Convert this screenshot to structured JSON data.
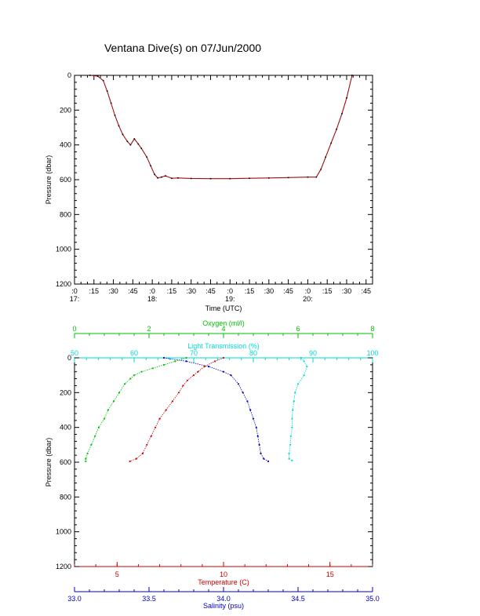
{
  "chart_data": [
    {
      "type": "line",
      "title": "Ventana Dive(s) on 07/Jun/2000",
      "xlabel": "Time (UTC)",
      "ylabel": "Pressure (dbar)",
      "ylim": [
        1200,
        0
      ],
      "yticks": [
        "0",
        "200",
        "400",
        "600",
        "800",
        "1000",
        "1200"
      ],
      "xticks_minute": [
        ":0",
        ":15",
        ":30",
        ":45",
        ":0",
        ":15",
        ":30",
        ":45",
        ":0",
        ":15",
        ":30",
        ":45",
        ":0",
        ":15",
        ":30",
        ":45"
      ],
      "xticks_hour": [
        "17:",
        "18:",
        "19:",
        "20:"
      ],
      "x_range_hours": [
        17.0,
        20.8333
      ],
      "color": "#a01010",
      "series": [
        {
          "x_hours": [
            17.2,
            17.3,
            17.37,
            17.42,
            17.47,
            17.52,
            17.57,
            17.62,
            17.68,
            17.72,
            17.77,
            17.82,
            17.86,
            17.93,
            17.98,
            18.03,
            18.07,
            18.12,
            18.17,
            18.25,
            18.33,
            18.5,
            18.75,
            19.0,
            19.25,
            19.5,
            19.75,
            20.0,
            20.11,
            20.17,
            20.23,
            20.3,
            20.37,
            20.44,
            20.5,
            20.57
          ],
          "y": [
            0,
            5,
            30,
            90,
            160,
            230,
            290,
            340,
            380,
            400,
            365,
            395,
            420,
            470,
            520,
            570,
            590,
            585,
            578,
            592,
            590,
            593,
            594,
            594,
            592,
            590,
            588,
            585,
            585,
            540,
            470,
            390,
            310,
            220,
            130,
            0
          ]
        }
      ]
    },
    {
      "type": "scatter",
      "ylabel": "Pressure (dbar)",
      "ylim": [
        1200,
        0
      ],
      "yticks": [
        "0",
        "200",
        "400",
        "600",
        "800",
        "1000",
        "1200"
      ],
      "axes": {
        "oxygen": {
          "label": "Oxygen (ml/l)",
          "range": [
            0,
            8
          ],
          "ticks": [
            "0",
            "2",
            "4",
            "6",
            "8"
          ],
          "color": "#00c000"
        },
        "light": {
          "label": "Light Transmission (%)",
          "range": [
            50,
            100
          ],
          "ticks": [
            "50",
            "60",
            "70",
            "80",
            "90",
            "100"
          ],
          "color": "#00d8d8"
        },
        "temperature": {
          "label": "Temperature (C)",
          "range": [
            3,
            17
          ],
          "ticks": [
            "5",
            "10",
            "15"
          ],
          "color": "#cc0000"
        },
        "salinity": {
          "label": "Salinity (psu)",
          "range": [
            33.0,
            35.0
          ],
          "ticks": [
            "33.0",
            "33.5",
            "34.0",
            "34.5",
            "35.0"
          ],
          "color": "#0000c0"
        }
      },
      "series": [
        {
          "axis": "oxygen",
          "pressure": [
            0,
            20,
            40,
            60,
            80,
            100,
            120,
            150,
            200,
            250,
            300,
            350,
            400,
            450,
            500,
            550,
            580,
            595
          ],
          "values": [
            3.0,
            2.7,
            2.4,
            2.1,
            1.8,
            1.6,
            1.5,
            1.35,
            1.2,
            1.05,
            0.9,
            0.8,
            0.65,
            0.55,
            0.45,
            0.35,
            0.3,
            0.3
          ]
        },
        {
          "axis": "light",
          "pressure": [
            0,
            20,
            50,
            100,
            150,
            200,
            250,
            300,
            350,
            400,
            450,
            500,
            550,
            580,
            590
          ],
          "values": [
            88.0,
            88.5,
            89.0,
            88.5,
            87.5,
            87.0,
            86.8,
            86.6,
            86.5,
            86.5,
            86.3,
            86.2,
            86.0,
            86.0,
            86.5
          ]
        },
        {
          "axis": "temperature",
          "pressure": [
            0,
            20,
            50,
            80,
            100,
            130,
            160,
            200,
            250,
            300,
            350,
            400,
            450,
            500,
            550,
            580,
            595
          ],
          "values": [
            10.0,
            9.6,
            9.1,
            8.8,
            8.6,
            8.3,
            8.1,
            7.9,
            7.6,
            7.3,
            7.0,
            6.8,
            6.6,
            6.4,
            6.2,
            5.9,
            5.6
          ]
        },
        {
          "axis": "salinity",
          "pressure": [
            0,
            20,
            50,
            80,
            100,
            150,
            200,
            250,
            300,
            350,
            400,
            450,
            500,
            550,
            580,
            595
          ],
          "values": [
            33.6,
            33.75,
            33.9,
            34.0,
            34.05,
            34.1,
            34.13,
            34.16,
            34.18,
            34.2,
            34.22,
            34.23,
            34.24,
            34.25,
            34.27,
            34.3
          ]
        }
      ]
    }
  ]
}
